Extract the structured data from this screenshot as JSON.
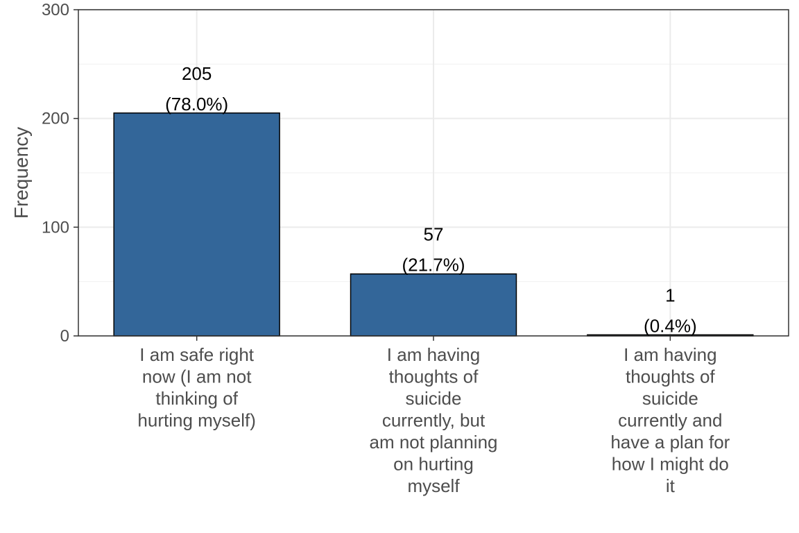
{
  "chart_data": {
    "type": "bar",
    "ylabel": "Frequency",
    "xlabel": "",
    "ylim": [
      0,
      300
    ],
    "yticks": [
      "0",
      "100",
      "200",
      "300"
    ],
    "grid": true,
    "bar_color": "#336699",
    "categories": [
      [
        "I am safe right",
        "now (I am not",
        "thinking of",
        "hurting myself)"
      ],
      [
        "I am having",
        "thoughts of",
        "suicide",
        "currently, but",
        "am not planning",
        "on hurting",
        "myself"
      ],
      [
        "I am having",
        "thoughts of",
        "suicide",
        "currently and",
        "have a plan for",
        "how I might do",
        "it"
      ]
    ],
    "values": [
      205,
      57,
      1
    ],
    "value_labels": [
      "205",
      "57",
      "1"
    ],
    "percent_labels": [
      "(78.0%)",
      "(21.7%)",
      "(0.4%)"
    ]
  }
}
